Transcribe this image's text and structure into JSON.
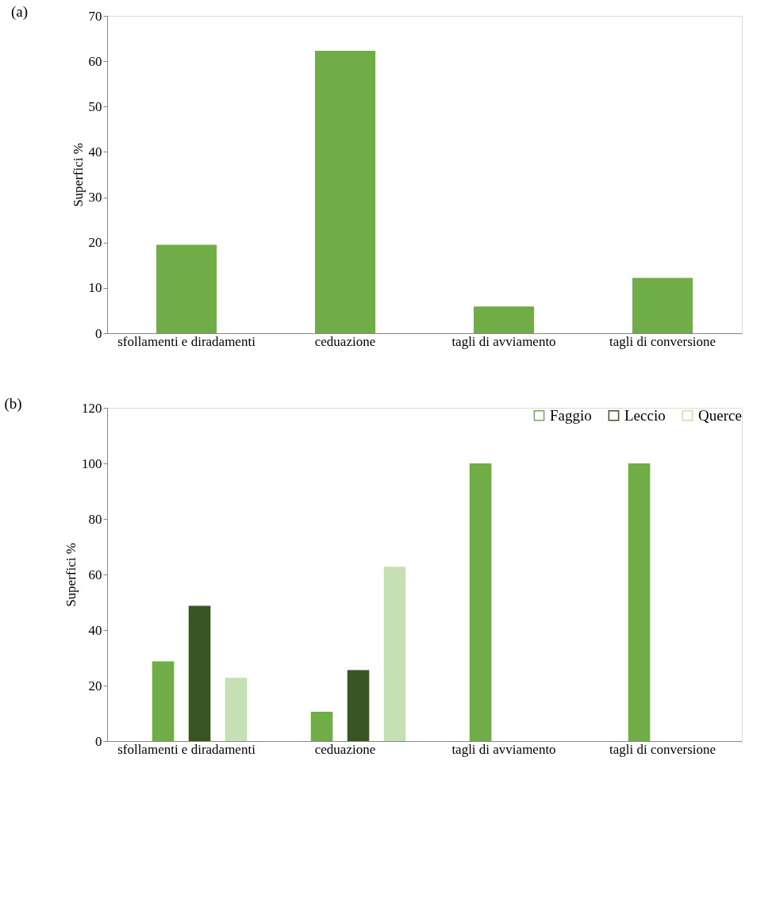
{
  "chart_data": [
    {
      "type": "bar",
      "title": "(a)",
      "ylabel": "Superfici %",
      "categories": [
        "sfollamenti e diradamenti",
        "ceduazione",
        "tagli di avviamento",
        "tagli di conversione"
      ],
      "values": [
        19.5,
        62.3,
        5.9,
        12.2
      ],
      "color": "#70ad47",
      "ylim": [
        0,
        70
      ],
      "yticks": [
        0,
        10,
        20,
        30,
        40,
        50,
        60,
        70
      ],
      "grid": false,
      "legend": false
    },
    {
      "type": "bar",
      "title": "(b)",
      "ylabel": "Superfici %",
      "categories": [
        "sfollamenti e diradamenti",
        "ceduazione",
        "tagli di avviamento",
        "tagli di conversione"
      ],
      "series": [
        {
          "name": "Faggio",
          "color": "#70ad47",
          "values": [
            28.7,
            10.6,
            100,
            100
          ]
        },
        {
          "name": "Leccio",
          "color": "#375623",
          "values": [
            48.7,
            25.6,
            null,
            null
          ]
        },
        {
          "name": "Querce",
          "color": "#c5e0b4",
          "values": [
            22.8,
            62.8,
            null,
            null
          ]
        }
      ],
      "ylim": [
        0,
        120
      ],
      "yticks": [
        0,
        20,
        40,
        60,
        80,
        100,
        120
      ],
      "grid": false,
      "legend": "top right"
    }
  ]
}
